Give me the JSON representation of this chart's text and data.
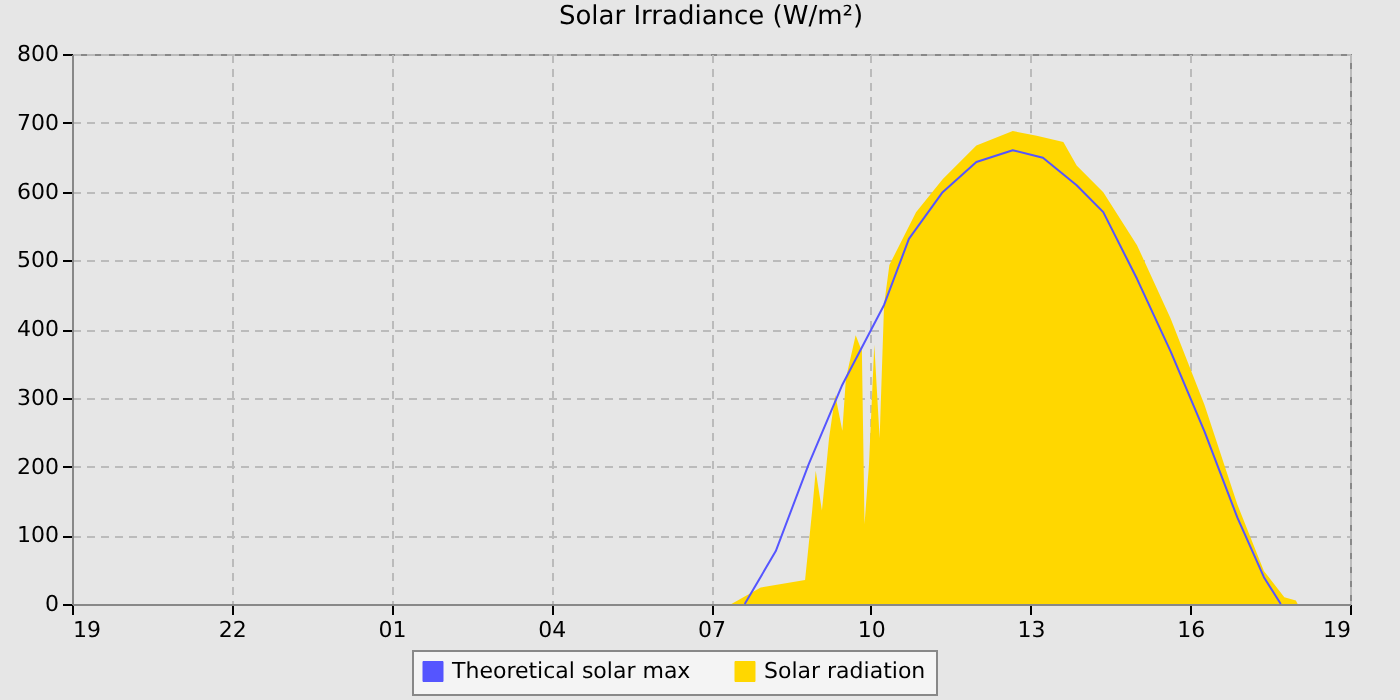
{
  "chart_data": {
    "type": "area",
    "title": "Solar Irradiance (W/m²)",
    "xlim": [
      "--01-01T19:00",
      "--01-02T19:00"
    ],
    "xticks": [
      {
        "value": "--01-01T19:00",
        "label": "19"
      },
      {
        "value": "--01-01T22:00",
        "label": "22"
      },
      {
        "value": "--01-02T01:00",
        "label": "01"
      },
      {
        "value": "--01-02T04:00",
        "label": "04"
      },
      {
        "value": "--01-02T07:00",
        "label": "07"
      },
      {
        "value": "--01-02T10:00",
        "label": "10"
      },
      {
        "value": "--01-02T13:00",
        "label": "13"
      },
      {
        "value": "--01-02T16:00",
        "label": "16"
      },
      {
        "value": "--01-02T19:00",
        "label": "19"
      }
    ],
    "ylim": [
      0,
      800
    ],
    "yticks": [
      0,
      100,
      200,
      300,
      400,
      500,
      600,
      700,
      800
    ],
    "grid": true,
    "legend": "bottom",
    "series": [
      {
        "name": "Theoretical solar max",
        "type": "line",
        "color": "#5555ff",
        "x": [
          "--01-02T07:38",
          "--01-02T08:13",
          "--01-02T08:50",
          "--01-02T09:28",
          "--01-02T10:15",
          "--01-02T10:43",
          "--01-02T11:21",
          "--01-02T11:59",
          "--01-02T12:40",
          "--01-02T13:14",
          "--01-02T13:52",
          "--01-02T14:22",
          "--01-02T15:00",
          "--01-02T15:38",
          "--01-02T16:16",
          "--01-02T16:53",
          "--01-02T17:23",
          "--01-02T17:42"
        ],
        "values": [
          0,
          77,
          203,
          319,
          435,
          531,
          599,
          643,
          660,
          649,
          609,
          570,
          473,
          367,
          251,
          126,
          39,
          0
        ]
      },
      {
        "name": "Solar radiation",
        "color": "#ffd700",
        "x": [
          "--01-02T07:23",
          "--01-02T07:56",
          "--01-02T08:46",
          "--01-02T08:54",
          "--01-02T08:58",
          "--01-02T09:05",
          "--01-02T09:13",
          "--01-02T09:20",
          "--01-02T09:28",
          "--01-02T09:32",
          "--01-02T09:43",
          "--01-02T09:50",
          "--01-02T09:53",
          "--01-02T09:58",
          "--01-02T10:04",
          "--01-02T10:10",
          "--01-02T10:15",
          "--01-02T10:21",
          "--01-02T10:51",
          "--01-02T11:21",
          "--01-02T11:59",
          "--01-02T12:40",
          "--01-02T13:07",
          "--01-02T13:37",
          "--01-02T13:52",
          "--01-02T14:22",
          "--01-02T15:00",
          "--01-02T15:38",
          "--01-02T16:16",
          "--01-02T16:53",
          "--01-02T17:23",
          "--01-02T17:46",
          "--01-02T17:59",
          "--01-02T18:01"
        ],
        "values": [
          0,
          24,
          35,
          136,
          194,
          136,
          241,
          304,
          252,
          328,
          391,
          368,
          116,
          203,
          377,
          241,
          435,
          493,
          570,
          618,
          667,
          688,
          681,
          672,
          638,
          599,
          522,
          415,
          290,
          145,
          48,
          10,
          5,
          0
        ]
      }
    ]
  }
}
